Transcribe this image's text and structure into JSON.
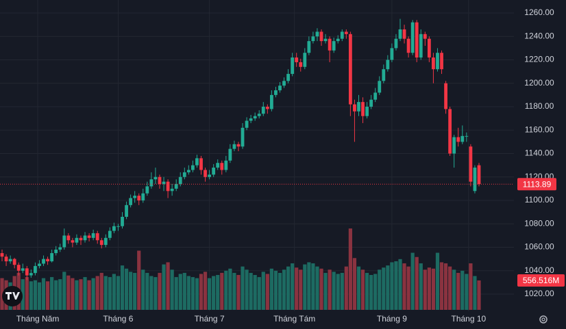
{
  "chart_data": {
    "type": "candlestick",
    "up_color": "#22ab94",
    "down_color": "#f23645",
    "volume_up_color": "#1d6b62",
    "volume_down_color": "#8a3340",
    "grid": true,
    "ylim": [
      1010,
      1262
    ],
    "yticks": [
      {
        "value": 1020,
        "label": "1020.00"
      },
      {
        "value": 1040,
        "label": "1040.00"
      },
      {
        "value": 1060,
        "label": "1060.00"
      },
      {
        "value": 1080,
        "label": "1080.00"
      },
      {
        "value": 1100,
        "label": "1100.00"
      },
      {
        "value": 1120,
        "label": "1120.00"
      },
      {
        "value": 1140,
        "label": "1140.00"
      },
      {
        "value": 1160,
        "label": "1160.00"
      },
      {
        "value": 1180,
        "label": "1180.00"
      },
      {
        "value": 1200,
        "label": "1200.00"
      },
      {
        "value": 1220,
        "label": "1220.00"
      },
      {
        "value": 1240,
        "label": "1240.00"
      },
      {
        "value": 1260,
        "label": "1260.00"
      }
    ],
    "xlim": [
      -0.5,
      116.5
    ],
    "xticks": [
      {
        "value": 8.6,
        "label": "Tháng Năm"
      },
      {
        "value": 28,
        "label": "Tháng 6"
      },
      {
        "value": 50,
        "label": "Tháng 7"
      },
      {
        "value": 70.5,
        "label": "Tháng Tám"
      },
      {
        "value": 94,
        "label": "Tháng 9"
      },
      {
        "value": 112.5,
        "label": "Tháng 10"
      }
    ],
    "volume_label": {
      "value": 556.516,
      "label": "556.516M"
    },
    "candles": [
      [
        1055,
        1058,
        1048,
        1052,
        600
      ],
      [
        1052,
        1054,
        1044,
        1048,
        560
      ],
      [
        1048,
        1053,
        1046,
        1050,
        520
      ],
      [
        1050,
        1051,
        1042,
        1045,
        640
      ],
      [
        1045,
        1047,
        1036,
        1040,
        700
      ],
      [
        1040,
        1046,
        1038,
        1042,
        580
      ],
      [
        1042,
        1044,
        1032,
        1036,
        620
      ],
      [
        1036,
        1041,
        1034,
        1038,
        540
      ],
      [
        1038,
        1047,
        1036,
        1044,
        560
      ],
      [
        1044,
        1049,
        1042,
        1046,
        520
      ],
      [
        1046,
        1053,
        1044,
        1050,
        600
      ],
      [
        1050,
        1052,
        1045,
        1048,
        540
      ],
      [
        1048,
        1058,
        1047,
        1055,
        620
      ],
      [
        1055,
        1061,
        1053,
        1058,
        560
      ],
      [
        1058,
        1063,
        1056,
        1060,
        580
      ],
      [
        1060,
        1076,
        1058,
        1070,
        720
      ],
      [
        1070,
        1072,
        1063,
        1066,
        650
      ],
      [
        1066,
        1068,
        1060,
        1064,
        600
      ],
      [
        1064,
        1071,
        1062,
        1068,
        560
      ],
      [
        1068,
        1070,
        1062,
        1066,
        580
      ],
      [
        1066,
        1073,
        1064,
        1070,
        620
      ],
      [
        1070,
        1072,
        1065,
        1068,
        560
      ],
      [
        1068,
        1075,
        1066,
        1072,
        600
      ],
      [
        1072,
        1074,
        1063,
        1066,
        640
      ],
      [
        1066,
        1068,
        1059,
        1062,
        700
      ],
      [
        1062,
        1071,
        1060,
        1068,
        640
      ],
      [
        1068,
        1077,
        1066,
        1074,
        620
      ],
      [
        1074,
        1081,
        1072,
        1078,
        680
      ],
      [
        1078,
        1080,
        1074,
        1078,
        640
      ],
      [
        1078,
        1090,
        1076,
        1086,
        840
      ],
      [
        1086,
        1099,
        1084,
        1096,
        780
      ],
      [
        1096,
        1105,
        1094,
        1102,
        720
      ],
      [
        1102,
        1108,
        1098,
        1104,
        700
      ],
      [
        1104,
        1106,
        1096,
        1100,
        1120
      ],
      [
        1100,
        1110,
        1098,
        1106,
        760
      ],
      [
        1106,
        1116,
        1104,
        1112,
        700
      ],
      [
        1112,
        1124,
        1110,
        1118,
        640
      ],
      [
        1118,
        1128,
        1114,
        1120,
        620
      ],
      [
        1120,
        1122,
        1110,
        1114,
        700
      ],
      [
        1114,
        1120,
        1108,
        1116,
        860
      ],
      [
        1116,
        1118,
        1102,
        1108,
        900
      ],
      [
        1108,
        1114,
        1104,
        1110,
        760
      ],
      [
        1110,
        1118,
        1108,
        1114,
        620
      ],
      [
        1114,
        1124,
        1112,
        1120,
        680
      ],
      [
        1120,
        1128,
        1118,
        1124,
        700
      ],
      [
        1124,
        1130,
        1122,
        1126,
        640
      ],
      [
        1126,
        1134,
        1124,
        1130,
        620
      ],
      [
        1130,
        1139,
        1128,
        1136,
        600
      ],
      [
        1136,
        1138,
        1122,
        1126,
        680
      ],
      [
        1126,
        1128,
        1116,
        1120,
        720
      ],
      [
        1120,
        1126,
        1118,
        1122,
        600
      ],
      [
        1122,
        1131,
        1120,
        1128,
        640
      ],
      [
        1128,
        1135,
        1126,
        1132,
        660
      ],
      [
        1132,
        1134,
        1122,
        1126,
        700
      ],
      [
        1126,
        1138,
        1124,
        1134,
        740
      ],
      [
        1134,
        1148,
        1132,
        1144,
        780
      ],
      [
        1144,
        1151,
        1142,
        1148,
        700
      ],
      [
        1148,
        1150,
        1142,
        1146,
        660
      ],
      [
        1146,
        1166,
        1144,
        1162,
        820
      ],
      [
        1162,
        1171,
        1160,
        1168,
        760
      ],
      [
        1168,
        1173,
        1166,
        1170,
        700
      ],
      [
        1170,
        1175,
        1168,
        1172,
        660
      ],
      [
        1172,
        1177,
        1170,
        1174,
        620
      ],
      [
        1174,
        1184,
        1172,
        1180,
        720
      ],
      [
        1180,
        1182,
        1174,
        1178,
        680
      ],
      [
        1178,
        1194,
        1176,
        1190,
        780
      ],
      [
        1190,
        1197,
        1188,
        1194,
        740
      ],
      [
        1194,
        1201,
        1192,
        1198,
        700
      ],
      [
        1198,
        1205,
        1196,
        1202,
        760
      ],
      [
        1202,
        1212,
        1200,
        1208,
        820
      ],
      [
        1208,
        1226,
        1206,
        1222,
        880
      ],
      [
        1222,
        1226,
        1214,
        1218,
        800
      ],
      [
        1218,
        1221,
        1210,
        1214,
        760
      ],
      [
        1214,
        1230,
        1212,
        1226,
        860
      ],
      [
        1226,
        1240,
        1224,
        1236,
        900
      ],
      [
        1236,
        1244,
        1234,
        1240,
        880
      ],
      [
        1240,
        1247,
        1236,
        1244,
        820
      ],
      [
        1244,
        1246,
        1232,
        1236,
        780
      ],
      [
        1236,
        1242,
        1234,
        1238,
        700
      ],
      [
        1238,
        1240,
        1218,
        1228,
        760
      ],
      [
        1228,
        1239,
        1226,
        1236,
        720
      ],
      [
        1236,
        1241,
        1234,
        1238,
        680
      ],
      [
        1238,
        1246,
        1236,
        1244,
        700
      ],
      [
        1244,
        1246,
        1238,
        1242,
        820
      ],
      [
        1242,
        1244,
        1172,
        1182,
        1540
      ],
      [
        1182,
        1186,
        1150,
        1176,
        980
      ],
      [
        1176,
        1190,
        1172,
        1184,
        820
      ],
      [
        1184,
        1188,
        1166,
        1172,
        760
      ],
      [
        1172,
        1184,
        1170,
        1180,
        700
      ],
      [
        1180,
        1190,
        1178,
        1186,
        660
      ],
      [
        1186,
        1196,
        1184,
        1192,
        680
      ],
      [
        1192,
        1206,
        1190,
        1202,
        760
      ],
      [
        1202,
        1216,
        1200,
        1212,
        800
      ],
      [
        1212,
        1224,
        1210,
        1220,
        840
      ],
      [
        1220,
        1234,
        1218,
        1230,
        900
      ],
      [
        1230,
        1242,
        1228,
        1238,
        920
      ],
      [
        1238,
        1255,
        1236,
        1246,
        960
      ],
      [
        1246,
        1250,
        1234,
        1238,
        880
      ],
      [
        1238,
        1240,
        1222,
        1226,
        820
      ],
      [
        1226,
        1254,
        1224,
        1252,
        1080
      ],
      [
        1252,
        1254,
        1218,
        1222,
        1000
      ],
      [
        1222,
        1246,
        1220,
        1242,
        880
      ],
      [
        1242,
        1244,
        1232,
        1238,
        760
      ],
      [
        1238,
        1240,
        1218,
        1222,
        800
      ],
      [
        1222,
        1226,
        1200,
        1212,
        780
      ],
      [
        1212,
        1230,
        1210,
        1226,
        1080
      ],
      [
        1226,
        1228,
        1208,
        1212,
        900
      ],
      [
        1200,
        1202,
        1174,
        1178,
        880
      ],
      [
        1178,
        1180,
        1138,
        1140,
        820
      ],
      [
        1140,
        1156,
        1128,
        1154,
        760
      ],
      [
        1154,
        1162,
        1146,
        1150,
        700
      ],
      [
        1150,
        1164,
        1148,
        1155,
        740
      ],
      [
        1155,
        1158,
        1150,
        1155,
        680
      ],
      [
        1146,
        1148,
        1112,
        1116,
        880
      ],
      [
        1108,
        1130,
        1106,
        1128,
        640
      ],
      [
        1130,
        1132,
        1112,
        1113.89,
        556.516
      ]
    ]
  }
}
